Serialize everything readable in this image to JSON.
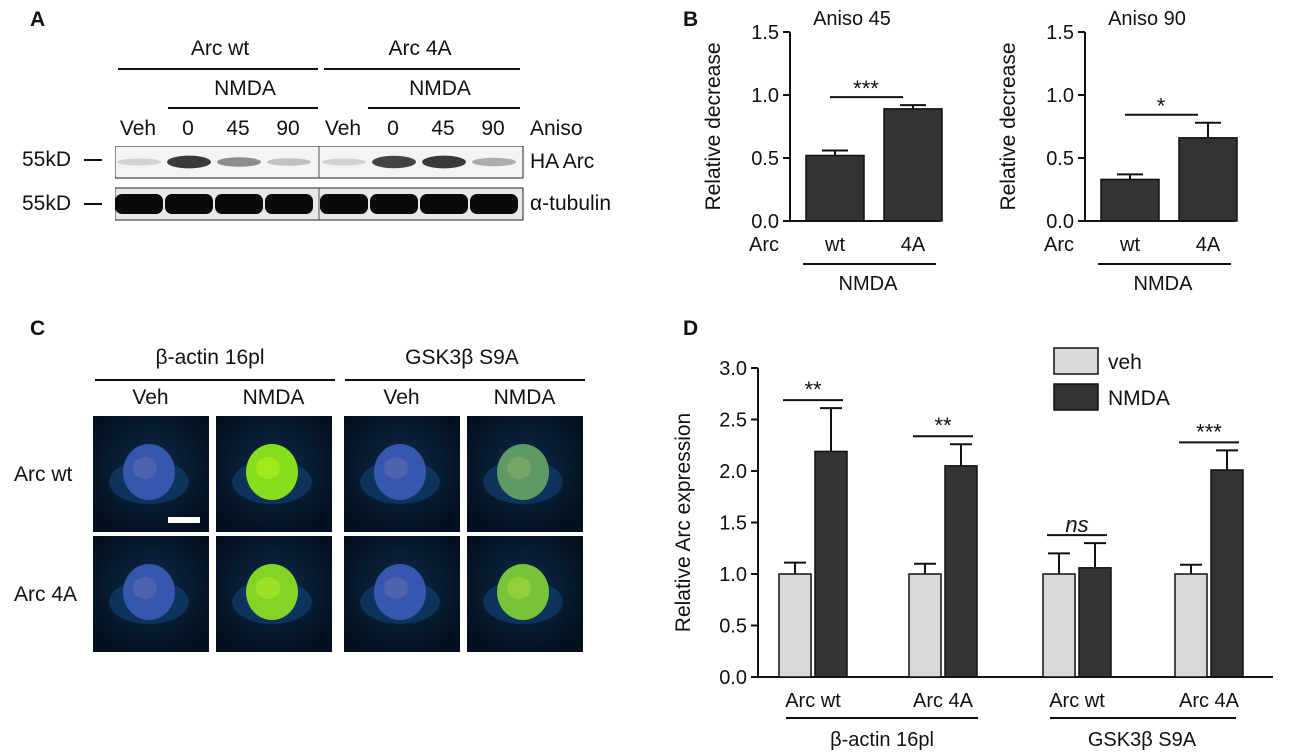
{
  "panels": {
    "a": {
      "label": "A",
      "group_labels": [
        "Arc wt",
        "Arc 4A"
      ],
      "nmda_label": "NMDA",
      "lanes": [
        "Veh",
        "0",
        "45",
        "90",
        "Veh",
        "0",
        "45",
        "90"
      ],
      "aniso_label": "Aniso",
      "marker_labels": [
        "55kD",
        "55kD"
      ],
      "blot_labels": [
        "HA Arc",
        "α-tubulin"
      ],
      "ha_band_intensity": [
        0.12,
        0.85,
        0.45,
        0.2,
        0.12,
        0.8,
        0.85,
        0.3
      ]
    },
    "b": {
      "label": "B"
    },
    "c": {
      "label": "C",
      "group_labels": [
        "β-actin 16pl",
        "GSK3β S9A"
      ],
      "column_labels": [
        "Veh",
        "NMDA",
        "Veh",
        "NMDA"
      ],
      "row_labels": [
        "Arc wt",
        "Arc 4A"
      ],
      "nucleus_intensity": [
        [
          0.15,
          0.95,
          0.15,
          0.55
        ],
        [
          0.15,
          0.9,
          0.15,
          0.8
        ]
      ]
    },
    "d": {
      "label": "D"
    }
  },
  "chart_data": [
    {
      "type": "bar",
      "title": "Aniso 45",
      "ylabel": "Relative decrease",
      "ylim": [
        0,
        1.5
      ],
      "yticks": [
        "0.0",
        "0.5",
        "1.0",
        "1.5"
      ],
      "group_prefix": "Arc",
      "categories": [
        "wt",
        "4A"
      ],
      "values": [
        0.52,
        0.89
      ],
      "errors": [
        0.04,
        0.03
      ],
      "xgroup_label": "NMDA",
      "significance": "***",
      "color": "#333333"
    },
    {
      "type": "bar",
      "title": "Aniso  90",
      "ylabel": "Relative decrease",
      "ylim": [
        0,
        1.5
      ],
      "yticks": [
        "0.0",
        "0.5",
        "1.0",
        "1.5"
      ],
      "group_prefix": "Arc",
      "categories": [
        "wt",
        "4A"
      ],
      "values": [
        0.33,
        0.66
      ],
      "errors": [
        0.04,
        0.12
      ],
      "xgroup_label": "NMDA",
      "significance": "*",
      "color": "#333333"
    },
    {
      "type": "bar",
      "ylabel": "Relative Arc expression",
      "ylim": [
        0,
        3.0
      ],
      "yticks": [
        "0.0",
        "0.5",
        "1.0",
        "1.5",
        "2.0",
        "2.5",
        "3.0"
      ],
      "categories": [
        "Arc wt",
        "Arc 4A",
        "Arc wt",
        "Arc 4A"
      ],
      "category_groups": [
        "β-actin 16pl",
        "GSK3β S9A"
      ],
      "series": [
        {
          "name": "veh",
          "color": "#d9d9d9",
          "values": [
            1.0,
            1.0,
            1.0,
            1.0
          ],
          "errors": [
            0.11,
            0.1,
            0.2,
            0.09
          ]
        },
        {
          "name": "NMDA",
          "color": "#333333",
          "values": [
            2.19,
            2.05,
            1.06,
            2.01
          ],
          "errors": [
            0.42,
            0.21,
            0.24,
            0.19
          ]
        }
      ],
      "significance": [
        "**",
        "**",
        "ns",
        "***"
      ],
      "legend_position": "top-right"
    }
  ]
}
